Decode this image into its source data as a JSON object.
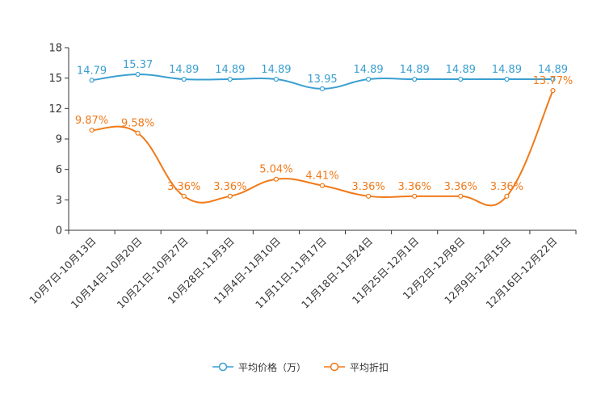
{
  "chart_data": {
    "type": "line",
    "title": "",
    "xlabel": "",
    "ylabel": "",
    "ylim": [
      0,
      18
    ],
    "yticks": [
      0,
      3,
      6,
      9,
      12,
      15,
      18
    ],
    "grid": false,
    "legend_position": "bottom-center",
    "categories": [
      "10月7日-10月13日",
      "10月14日-10月20日",
      "10月21日-10月27日",
      "10月28日-11月3日",
      "11月4日-11月10日",
      "11月11日-11月17日",
      "11月18日-11月24日",
      "11月25日-12月1日",
      "12月2日-12月8日",
      "12月9日-12月15日",
      "12月16日-12月22日"
    ],
    "series": [
      {
        "name": "平均价格（万）",
        "color": "#3a9fd0",
        "values": [
          14.79,
          15.37,
          14.89,
          14.89,
          14.89,
          13.95,
          14.89,
          14.89,
          14.89,
          14.89,
          14.89
        ],
        "labels": [
          "14.79",
          "15.37",
          "14.89",
          "14.89",
          "14.89",
          "13.95",
          "14.89",
          "14.89",
          "14.89",
          "14.89",
          "14.89"
        ]
      },
      {
        "name": "平均折扣",
        "color": "#f07a1a",
        "values": [
          9.87,
          9.58,
          3.36,
          3.36,
          5.04,
          4.41,
          3.36,
          3.36,
          3.36,
          3.36,
          13.77
        ],
        "labels": [
          "9.87%",
          "9.58%",
          "3.36%",
          "3.36%",
          "5.04%",
          "4.41%",
          "3.36%",
          "3.36%",
          "3.36%",
          "3.36%",
          "13.77%"
        ]
      }
    ]
  }
}
